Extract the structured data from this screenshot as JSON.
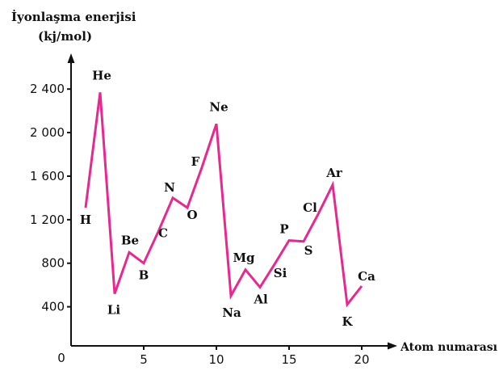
{
  "chart_data": {
    "type": "line",
    "title_line1": "İyonlaşma enerjisi",
    "title_line2": "(kj/mol)",
    "xlabel": "Atom numarası",
    "origin_label": "0",
    "xlim": [
      0,
      20
    ],
    "ylim": [
      0,
      2500
    ],
    "x_ticks": [
      5,
      10,
      15,
      20
    ],
    "x_tick_labels": [
      "5",
      "10",
      "15",
      "20"
    ],
    "y_ticks": [
      400,
      800,
      1200,
      1600,
      2000,
      2400
    ],
    "y_tick_labels": [
      "400",
      "800",
      "1 200",
      "1 600",
      "2 000",
      "2 400"
    ],
    "line_color": "#e8288f",
    "axis_color": "#111111",
    "grid": false,
    "points": [
      {
        "x": 1,
        "y": 1310,
        "label": "H"
      },
      {
        "x": 2,
        "y": 2370,
        "label": "He"
      },
      {
        "x": 3,
        "y": 520,
        "label": "Li"
      },
      {
        "x": 4,
        "y": 900,
        "label": "Be"
      },
      {
        "x": 5,
        "y": 800,
        "label": "B"
      },
      {
        "x": 6,
        "y": 1090,
        "label": "C"
      },
      {
        "x": 7,
        "y": 1400,
        "label": "N"
      },
      {
        "x": 8,
        "y": 1310,
        "label": "O"
      },
      {
        "x": 9,
        "y": 1680,
        "label": "F"
      },
      {
        "x": 10,
        "y": 2080,
        "label": "Ne"
      },
      {
        "x": 11,
        "y": 500,
        "label": "Na"
      },
      {
        "x": 12,
        "y": 740,
        "label": "Mg"
      },
      {
        "x": 13,
        "y": 580,
        "label": "Al"
      },
      {
        "x": 14,
        "y": 790,
        "label": "Si"
      },
      {
        "x": 15,
        "y": 1010,
        "label": "P"
      },
      {
        "x": 16,
        "y": 1000,
        "label": "S"
      },
      {
        "x": 17,
        "y": 1250,
        "label": "Cl"
      },
      {
        "x": 18,
        "y": 1520,
        "label": "Ar"
      },
      {
        "x": 19,
        "y": 420,
        "label": "K"
      },
      {
        "x": 20,
        "y": 590,
        "label": "Ca"
      }
    ]
  }
}
